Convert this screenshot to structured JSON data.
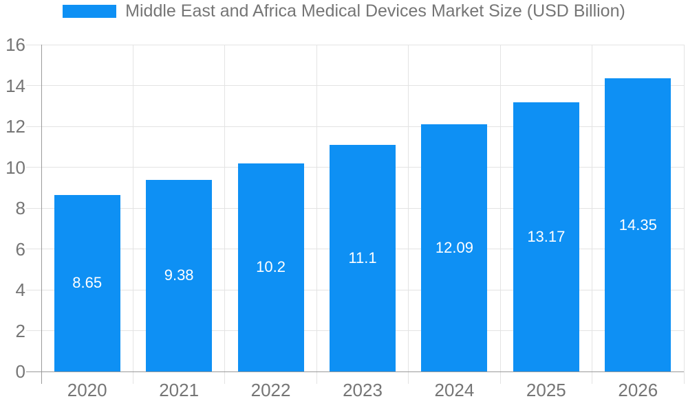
{
  "chart_data": {
    "type": "bar",
    "title": "Middle East and Africa Medical Devices Market Size (USD Billion)",
    "categories": [
      "2020",
      "2021",
      "2022",
      "2023",
      "2024",
      "2025",
      "2026"
    ],
    "values": [
      8.65,
      9.38,
      10.2,
      11.1,
      12.09,
      13.17,
      14.35
    ],
    "value_labels": [
      "8.65",
      "9.38",
      "10.2",
      "11.1",
      "12.09",
      "13.17",
      "14.35"
    ],
    "xlabel": "",
    "ylabel": "",
    "ylim": [
      0,
      16
    ],
    "yticks": [
      0,
      2,
      4,
      6,
      8,
      10,
      12,
      14,
      16
    ],
    "grid": true,
    "legend_position": "top",
    "colors": {
      "bar": "#0e90f4",
      "value_label": "#ffffff",
      "axis_line": "#999999",
      "grid_line": "#e3e3e3",
      "text": "#757575",
      "background": "#ffffff"
    }
  }
}
